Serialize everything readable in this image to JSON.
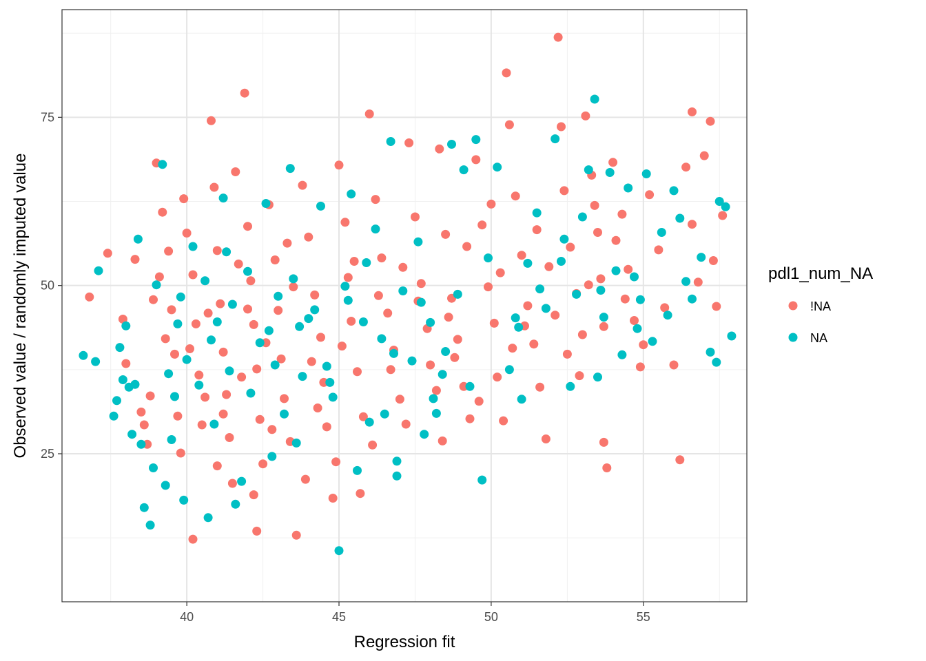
{
  "chart_data": {
    "type": "scatter",
    "title": "",
    "xlabel": "Regression fit",
    "ylabel": "Observed value / randomly imputed value",
    "xlim": [
      35.9,
      58.4
    ],
    "ylim": [
      3.0,
      91.0
    ],
    "x_ticks": [
      40,
      45,
      50,
      55
    ],
    "y_ticks": [
      25,
      50,
      75
    ],
    "grid": true,
    "legend": {
      "title": "pdl1_num_NA",
      "placement": "right",
      "entries": [
        "!NA",
        "NA"
      ]
    },
    "colors": {
      "!NA": "#F8766D",
      "NA": "#00BFC4"
    },
    "series": [
      {
        "name": "!NA",
        "color": "#F8766D",
        "points": [
          [
            36.8,
            48.3
          ],
          [
            37.4,
            54.8
          ],
          [
            37.9,
            45.0
          ],
          [
            38.3,
            53.9
          ],
          [
            38.0,
            38.4
          ],
          [
            38.6,
            29.3
          ],
          [
            38.8,
            33.6
          ],
          [
            38.9,
            47.9
          ],
          [
            39.0,
            68.2
          ],
          [
            39.2,
            60.9
          ],
          [
            39.4,
            55.1
          ],
          [
            39.5,
            46.4
          ],
          [
            39.6,
            39.8
          ],
          [
            39.7,
            30.6
          ],
          [
            39.8,
            25.1
          ],
          [
            39.9,
            62.9
          ],
          [
            40.0,
            57.8
          ],
          [
            40.2,
            51.6
          ],
          [
            40.3,
            44.3
          ],
          [
            40.4,
            36.7
          ],
          [
            40.5,
            29.3
          ],
          [
            40.2,
            12.3
          ],
          [
            40.8,
            74.5
          ],
          [
            40.9,
            64.6
          ],
          [
            41.0,
            55.2
          ],
          [
            41.1,
            47.3
          ],
          [
            41.2,
            40.1
          ],
          [
            41.3,
            33.8
          ],
          [
            41.4,
            27.4
          ],
          [
            41.5,
            20.6
          ],
          [
            41.6,
            66.9
          ],
          [
            41.9,
            78.6
          ],
          [
            42.0,
            58.8
          ],
          [
            42.1,
            50.7
          ],
          [
            42.2,
            44.2
          ],
          [
            42.3,
            37.6
          ],
          [
            42.4,
            30.1
          ],
          [
            42.5,
            23.5
          ],
          [
            42.3,
            13.5
          ],
          [
            42.7,
            62.0
          ],
          [
            42.9,
            53.8
          ],
          [
            43.0,
            46.3
          ],
          [
            43.1,
            39.1
          ],
          [
            43.2,
            33.2
          ],
          [
            43.4,
            26.8
          ],
          [
            43.6,
            12.9
          ],
          [
            43.8,
            64.9
          ],
          [
            44.0,
            57.2
          ],
          [
            44.2,
            48.6
          ],
          [
            44.4,
            42.3
          ],
          [
            44.5,
            35.6
          ],
          [
            44.6,
            29.0
          ],
          [
            44.8,
            18.4
          ],
          [
            45.0,
            67.9
          ],
          [
            45.2,
            59.4
          ],
          [
            45.3,
            51.2
          ],
          [
            45.4,
            44.7
          ],
          [
            45.6,
            37.2
          ],
          [
            45.8,
            30.5
          ],
          [
            46.0,
            75.5
          ],
          [
            46.2,
            62.8
          ],
          [
            46.4,
            54.1
          ],
          [
            46.6,
            45.9
          ],
          [
            46.8,
            40.4
          ],
          [
            47.0,
            33.1
          ],
          [
            47.3,
            71.2
          ],
          [
            47.5,
            60.2
          ],
          [
            47.7,
            50.3
          ],
          [
            47.9,
            43.6
          ],
          [
            48.0,
            38.2
          ],
          [
            48.2,
            34.4
          ],
          [
            48.3,
            70.3
          ],
          [
            48.5,
            57.6
          ],
          [
            48.7,
            48.1
          ],
          [
            48.9,
            42.0
          ],
          [
            49.1,
            35.0
          ],
          [
            49.3,
            30.2
          ],
          [
            49.5,
            68.7
          ],
          [
            49.7,
            59.0
          ],
          [
            49.9,
            49.8
          ],
          [
            50.1,
            44.4
          ],
          [
            50.2,
            36.4
          ],
          [
            50.4,
            29.9
          ],
          [
            50.5,
            81.6
          ],
          [
            50.6,
            73.9
          ],
          [
            50.8,
            63.3
          ],
          [
            51.0,
            54.5
          ],
          [
            51.2,
            47.0
          ],
          [
            51.4,
            41.3
          ],
          [
            51.6,
            34.9
          ],
          [
            51.8,
            27.2
          ],
          [
            52.2,
            86.9
          ],
          [
            52.3,
            73.6
          ],
          [
            52.4,
            64.1
          ],
          [
            52.6,
            55.7
          ],
          [
            52.8,
            48.8
          ],
          [
            53.0,
            42.7
          ],
          [
            53.1,
            75.2
          ],
          [
            53.3,
            66.4
          ],
          [
            53.5,
            57.9
          ],
          [
            53.6,
            51.0
          ],
          [
            53.7,
            43.9
          ],
          [
            53.7,
            26.7
          ],
          [
            53.8,
            22.9
          ],
          [
            54.0,
            68.3
          ],
          [
            54.3,
            60.6
          ],
          [
            54.5,
            52.4
          ],
          [
            54.7,
            44.8
          ],
          [
            54.9,
            37.9
          ],
          [
            55.2,
            63.5
          ],
          [
            55.5,
            55.3
          ],
          [
            55.7,
            46.7
          ],
          [
            56.0,
            38.2
          ],
          [
            56.2,
            24.1
          ],
          [
            56.4,
            67.6
          ],
          [
            56.6,
            59.1
          ],
          [
            56.6,
            75.8
          ],
          [
            56.8,
            50.5
          ],
          [
            57.0,
            69.3
          ],
          [
            57.2,
            74.4
          ],
          [
            57.3,
            53.7
          ],
          [
            57.4,
            46.9
          ],
          [
            57.6,
            60.4
          ],
          [
            42.6,
            41.5
          ],
          [
            41.8,
            36.4
          ],
          [
            40.7,
            45.9
          ],
          [
            43.5,
            49.8
          ],
          [
            44.1,
            38.7
          ],
          [
            39.3,
            42.1
          ],
          [
            40.6,
            33.4
          ],
          [
            41.7,
            53.2
          ],
          [
            42.8,
            28.6
          ],
          [
            45.1,
            41.0
          ],
          [
            46.3,
            48.5
          ],
          [
            47.1,
            52.7
          ],
          [
            48.6,
            45.3
          ],
          [
            49.2,
            55.8
          ],
          [
            50.3,
            51.9
          ],
          [
            51.5,
            58.3
          ],
          [
            52.1,
            45.6
          ],
          [
            53.2,
            50.1
          ],
          [
            54.1,
            56.7
          ],
          [
            38.5,
            31.2
          ],
          [
            38.7,
            26.4
          ],
          [
            39.1,
            51.3
          ],
          [
            40.1,
            40.6
          ],
          [
            41.2,
            30.9
          ],
          [
            42.0,
            46.5
          ],
          [
            43.3,
            56.3
          ],
          [
            44.3,
            31.8
          ],
          [
            45.5,
            53.6
          ],
          [
            46.7,
            37.5
          ],
          [
            47.6,
            47.7
          ],
          [
            48.8,
            39.3
          ],
          [
            50.0,
            62.1
          ],
          [
            51.1,
            44.0
          ],
          [
            52.5,
            39.8
          ],
          [
            53.4,
            61.9
          ],
          [
            55.0,
            41.2
          ],
          [
            49.6,
            32.8
          ],
          [
            47.2,
            29.4
          ],
          [
            44.9,
            23.8
          ],
          [
            43.9,
            21.2
          ],
          [
            42.2,
            18.9
          ],
          [
            41.0,
            23.2
          ],
          [
            45.7,
            19.1
          ],
          [
            46.1,
            26.3
          ],
          [
            48.4,
            26.9
          ],
          [
            50.7,
            40.7
          ],
          [
            51.9,
            52.8
          ],
          [
            52.9,
            36.6
          ],
          [
            54.4,
            48.0
          ]
        ]
      },
      {
        "name": "NA",
        "color": "#00BFC4",
        "points": [
          [
            36.6,
            39.6
          ],
          [
            37.0,
            38.7
          ],
          [
            37.1,
            52.2
          ],
          [
            37.6,
            30.6
          ],
          [
            37.7,
            32.9
          ],
          [
            37.8,
            40.8
          ],
          [
            37.9,
            36.0
          ],
          [
            38.0,
            44.0
          ],
          [
            38.2,
            27.9
          ],
          [
            38.3,
            35.3
          ],
          [
            38.4,
            56.9
          ],
          [
            38.5,
            26.4
          ],
          [
            38.6,
            17.0
          ],
          [
            38.8,
            14.4
          ],
          [
            38.9,
            22.9
          ],
          [
            39.0,
            50.1
          ],
          [
            39.2,
            68.0
          ],
          [
            39.3,
            20.3
          ],
          [
            39.4,
            36.9
          ],
          [
            39.5,
            27.1
          ],
          [
            39.7,
            44.3
          ],
          [
            39.9,
            18.1
          ],
          [
            40.0,
            39.0
          ],
          [
            40.2,
            55.8
          ],
          [
            40.4,
            35.2
          ],
          [
            40.6,
            50.7
          ],
          [
            40.7,
            15.5
          ],
          [
            40.9,
            29.4
          ],
          [
            41.0,
            44.6
          ],
          [
            41.2,
            63.0
          ],
          [
            41.4,
            37.3
          ],
          [
            41.6,
            17.5
          ],
          [
            41.8,
            20.9
          ],
          [
            42.0,
            52.1
          ],
          [
            42.1,
            34.0
          ],
          [
            42.4,
            41.5
          ],
          [
            42.6,
            62.2
          ],
          [
            42.8,
            24.6
          ],
          [
            43.0,
            48.4
          ],
          [
            43.2,
            30.9
          ],
          [
            43.4,
            67.4
          ],
          [
            43.6,
            26.6
          ],
          [
            43.8,
            36.5
          ],
          [
            44.0,
            45.1
          ],
          [
            44.4,
            61.8
          ],
          [
            44.6,
            38.0
          ],
          [
            44.8,
            33.4
          ],
          [
            45.0,
            10.6
          ],
          [
            45.2,
            49.9
          ],
          [
            45.4,
            63.6
          ],
          [
            45.6,
            22.5
          ],
          [
            45.8,
            44.6
          ],
          [
            46.0,
            29.7
          ],
          [
            46.2,
            58.4
          ],
          [
            46.5,
            30.9
          ],
          [
            46.7,
            71.4
          ],
          [
            46.9,
            21.7
          ],
          [
            46.9,
            23.9
          ],
          [
            47.1,
            49.2
          ],
          [
            47.4,
            38.8
          ],
          [
            47.6,
            56.5
          ],
          [
            47.8,
            27.9
          ],
          [
            48.0,
            44.5
          ],
          [
            48.2,
            31.0
          ],
          [
            48.4,
            36.8
          ],
          [
            48.7,
            71.0
          ],
          [
            48.9,
            48.7
          ],
          [
            49.1,
            67.2
          ],
          [
            49.3,
            35.0
          ],
          [
            49.5,
            71.7
          ],
          [
            49.7,
            21.1
          ],
          [
            49.9,
            54.1
          ],
          [
            50.2,
            67.6
          ],
          [
            50.6,
            37.5
          ],
          [
            50.9,
            43.8
          ],
          [
            51.0,
            33.1
          ],
          [
            51.2,
            53.3
          ],
          [
            51.5,
            60.8
          ],
          [
            51.8,
            46.6
          ],
          [
            52.1,
            71.8
          ],
          [
            52.4,
            56.9
          ],
          [
            52.6,
            35.0
          ],
          [
            52.8,
            48.7
          ],
          [
            53.0,
            60.2
          ],
          [
            53.2,
            67.2
          ],
          [
            53.4,
            77.7
          ],
          [
            53.5,
            36.4
          ],
          [
            53.7,
            45.3
          ],
          [
            53.9,
            66.8
          ],
          [
            54.1,
            52.2
          ],
          [
            54.3,
            39.7
          ],
          [
            54.5,
            64.5
          ],
          [
            54.7,
            51.3
          ],
          [
            54.9,
            47.9
          ],
          [
            55.1,
            66.6
          ],
          [
            55.3,
            41.7
          ],
          [
            55.6,
            57.9
          ],
          [
            55.8,
            45.6
          ],
          [
            56.0,
            64.1
          ],
          [
            56.2,
            60.0
          ],
          [
            56.4,
            50.6
          ],
          [
            56.6,
            48.0
          ],
          [
            56.9,
            54.2
          ],
          [
            57.2,
            40.1
          ],
          [
            57.4,
            38.6
          ],
          [
            57.5,
            62.5
          ],
          [
            57.7,
            61.7
          ],
          [
            57.9,
            42.5
          ],
          [
            41.5,
            47.2
          ],
          [
            42.7,
            43.3
          ],
          [
            43.5,
            51.0
          ],
          [
            44.2,
            46.4
          ],
          [
            45.3,
            47.8
          ],
          [
            46.4,
            42.1
          ],
          [
            47.7,
            47.5
          ],
          [
            39.6,
            33.5
          ],
          [
            40.8,
            41.9
          ],
          [
            42.9,
            38.2
          ],
          [
            44.7,
            35.6
          ],
          [
            46.8,
            39.9
          ],
          [
            48.1,
            33.2
          ],
          [
            50.8,
            45.2
          ],
          [
            52.3,
            53.6
          ],
          [
            53.6,
            49.3
          ],
          [
            38.1,
            34.9
          ],
          [
            39.8,
            48.3
          ],
          [
            41.3,
            55.0
          ],
          [
            43.7,
            43.9
          ],
          [
            45.9,
            53.4
          ],
          [
            48.5,
            40.2
          ],
          [
            51.6,
            49.5
          ],
          [
            54.8,
            43.6
          ]
        ]
      }
    ]
  }
}
